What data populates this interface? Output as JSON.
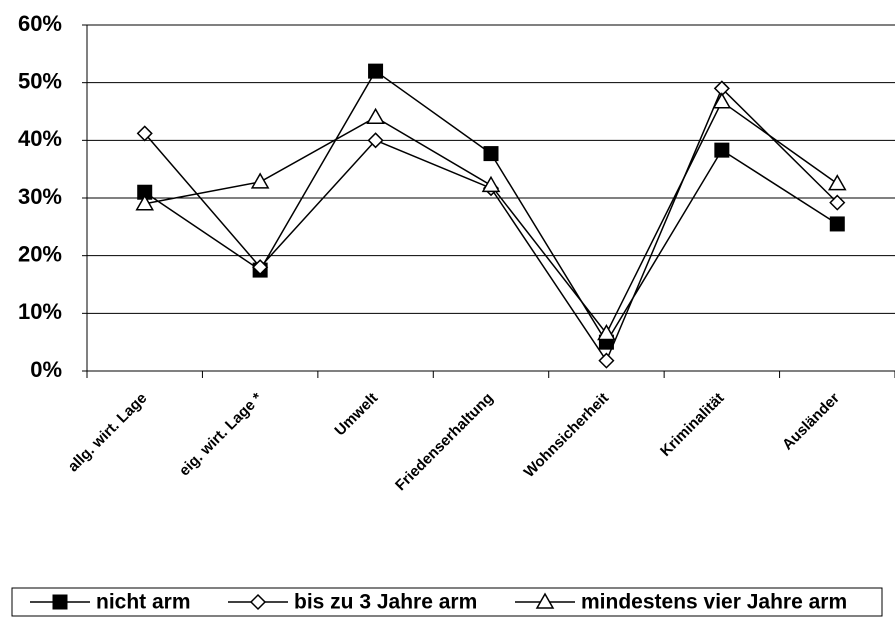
{
  "chart_data": {
    "type": "line",
    "categories": [
      "allg. wirt. Lage",
      "eig. wirt. Lage *",
      "Umwelt",
      "Friedenserhaltung",
      "Wohnsicherheit",
      "Kriminalität",
      "Ausländer"
    ],
    "series": [
      {
        "name": "nicht arm",
        "color": "#000000",
        "marker": "square",
        "values": [
          31,
          17.5,
          52,
          37.7,
          5,
          38.3,
          25.5
        ]
      },
      {
        "name": "bis zu 3 Jahre arm",
        "color": "#000000",
        "marker": "diamond",
        "values": [
          41.2,
          18,
          40,
          31.7,
          1.8,
          49,
          29.2
        ]
      },
      {
        "name": "mindestens vier Jahre arm",
        "color": "#000000",
        "marker": "triangle",
        "values": [
          29,
          32.8,
          44,
          32.2,
          6.5,
          46.7,
          32.5
        ]
      }
    ],
    "ylim": [
      0,
      60
    ],
    "yticks": [
      {
        "value": 0,
        "label": "0%"
      },
      {
        "value": 10,
        "label": "10%"
      },
      {
        "value": 20,
        "label": "20%"
      },
      {
        "value": 30,
        "label": "30%"
      },
      {
        "value": 40,
        "label": "40%"
      },
      {
        "value": 50,
        "label": "50%"
      },
      {
        "value": 60,
        "label": "60%"
      }
    ],
    "grid": true,
    "legend": "bottom"
  }
}
